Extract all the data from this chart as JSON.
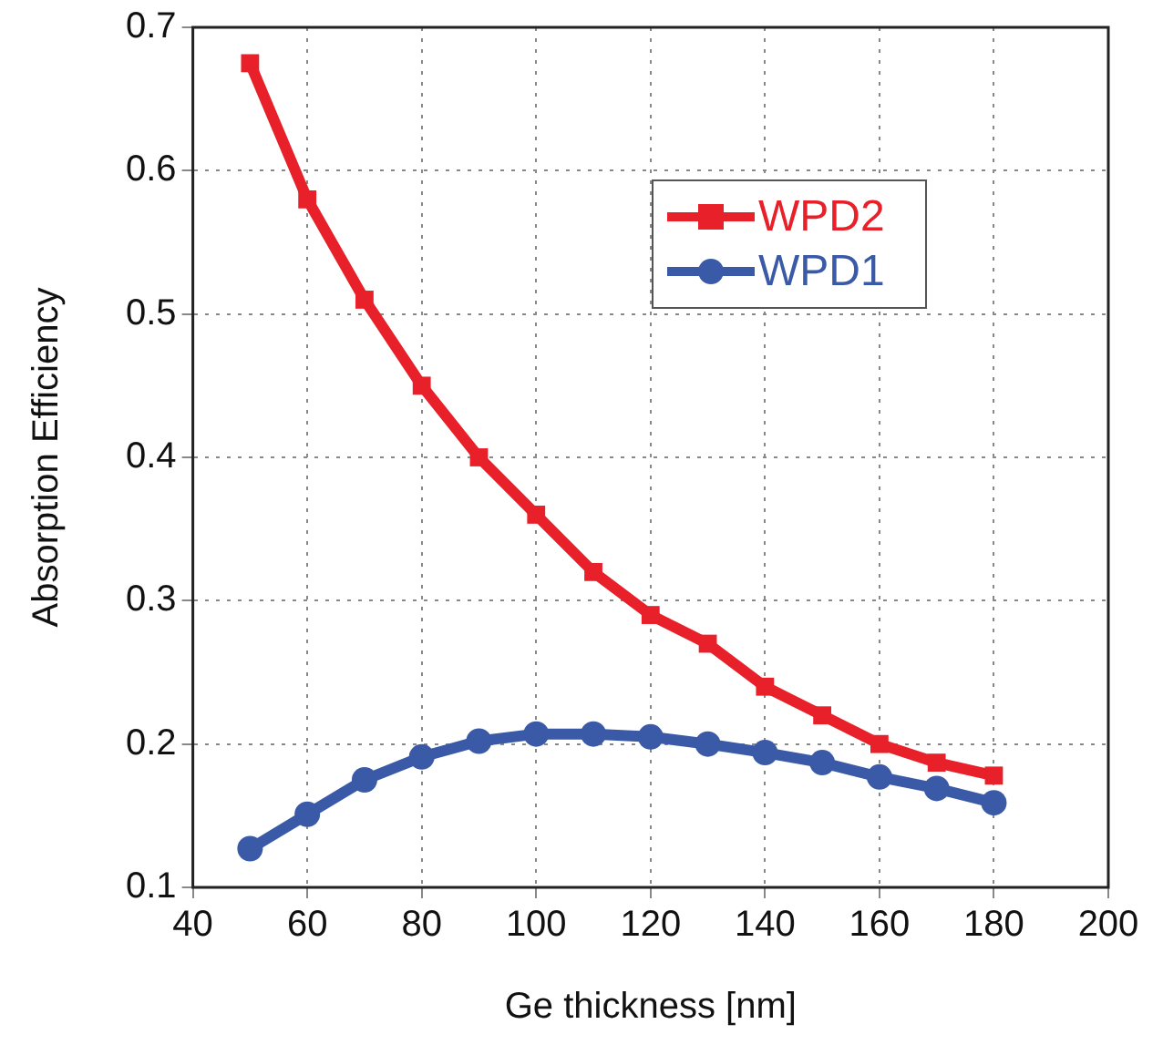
{
  "chart_data": {
    "type": "line",
    "xlabel": "Ge thickness [nm]",
    "ylabel": "Absorption Efficiency",
    "x": [
      50,
      60,
      70,
      80,
      90,
      100,
      110,
      120,
      130,
      140,
      150,
      160,
      170,
      180
    ],
    "series": [
      {
        "name": "WPD2",
        "color": "#e8202a",
        "marker": "square",
        "values": [
          0.675,
          0.58,
          0.51,
          0.45,
          0.4,
          0.36,
          0.32,
          0.29,
          0.27,
          0.24,
          0.22,
          0.2,
          0.187,
          0.178
        ]
      },
      {
        "name": "WPD1",
        "color": "#3a5aa8",
        "marker": "circle",
        "values": [
          0.127,
          0.151,
          0.175,
          0.191,
          0.202,
          0.207,
          0.207,
          0.205,
          0.2,
          0.194,
          0.187,
          0.177,
          0.169,
          0.159
        ]
      }
    ],
    "xlim": [
      40,
      200
    ],
    "xticks": [
      40,
      60,
      80,
      100,
      120,
      140,
      160,
      180,
      200
    ],
    "ylim": [
      0.1,
      0.7
    ],
    "yticks": [
      0.1,
      0.2,
      0.3,
      0.4,
      0.5,
      0.6,
      0.7
    ],
    "grid": true,
    "legend": "top right",
    "line_style": "solid"
  }
}
